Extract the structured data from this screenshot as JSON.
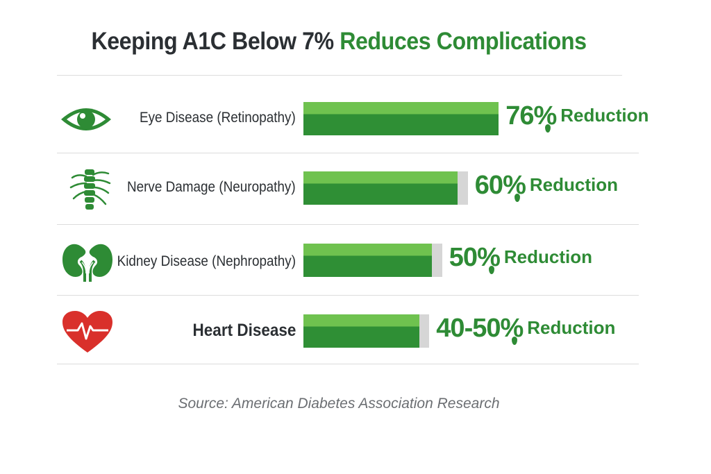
{
  "title": {
    "prefix": "Keeping A1C Below 7%",
    "highlight": "Reduces Complications"
  },
  "source": "Source: American Diabetes Association Research",
  "colors": {
    "accent": "#2e8b35",
    "bar_light": "#6fc24f",
    "bar_dark": "#2f8f35",
    "track": "#d6d6d6",
    "heart": "#d9302b"
  },
  "chart_data": {
    "type": "bar",
    "orientation": "horizontal",
    "categories": [
      "Eye Disease (Retinopathy)",
      "Nerve Damage (Neuropathy)",
      "Kidney Disease (Nephropathy)",
      "Heart Disease"
    ],
    "values": [
      76,
      60,
      50,
      45
    ],
    "value_labels": [
      "76%",
      "60%",
      "50%",
      "40-50%"
    ],
    "value_suffix": "Reduction",
    "track_values": [
      76,
      64,
      54,
      49
    ],
    "xlim": [
      0,
      100
    ],
    "icons": [
      "eye-icon",
      "spine-nerve-icon",
      "kidney-icon",
      "heart-icon"
    ],
    "grid": false,
    "legend": "none"
  }
}
